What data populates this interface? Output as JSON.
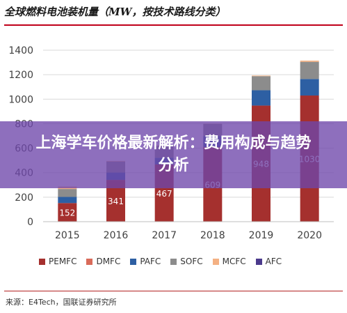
{
  "title": "全球燃料电池装机量（MW，按技术路线分类）",
  "source": "来源：E4Tech，国联证券研究所",
  "banner": "上海学车价格最新解析：费用构成与趋势分析",
  "chart_data": {
    "type": "bar",
    "stacked": true,
    "categories": [
      "2015",
      "2016",
      "2017",
      "2018",
      "2019",
      "2020"
    ],
    "ylim": [
      0,
      1400
    ],
    "yticks": [
      0,
      200,
      400,
      600,
      800,
      1000,
      1200,
      1400
    ],
    "series": [
      {
        "name": "PEMFC",
        "color": "#a5302e",
        "values": [
          152,
          341,
          467,
          609,
          948,
          1030
        ],
        "labels": [
          "152",
          "341",
          "467",
          "609",
          "948",
          "1030"
        ]
      },
      {
        "name": "DMFC",
        "color": "#d96b5a",
        "values": [
          0,
          0,
          0,
          0,
          0,
          0
        ]
      },
      {
        "name": "PAFC",
        "color": "#2d5fa3",
        "values": [
          50,
          60,
          55,
          90,
          125,
          135
        ]
      },
      {
        "name": "SOFC",
        "color": "#8c8c8c",
        "values": [
          65,
          90,
          95,
          100,
          115,
          140
        ]
      },
      {
        "name": "MCFC",
        "color": "#f4b183",
        "values": [
          20,
          5,
          5,
          2,
          5,
          10
        ]
      },
      {
        "name": "AFC",
        "color": "#4b3a8c",
        "values": [
          0,
          0,
          0,
          0,
          0,
          0
        ]
      }
    ],
    "legend_position": "bottom",
    "grid": true
  }
}
